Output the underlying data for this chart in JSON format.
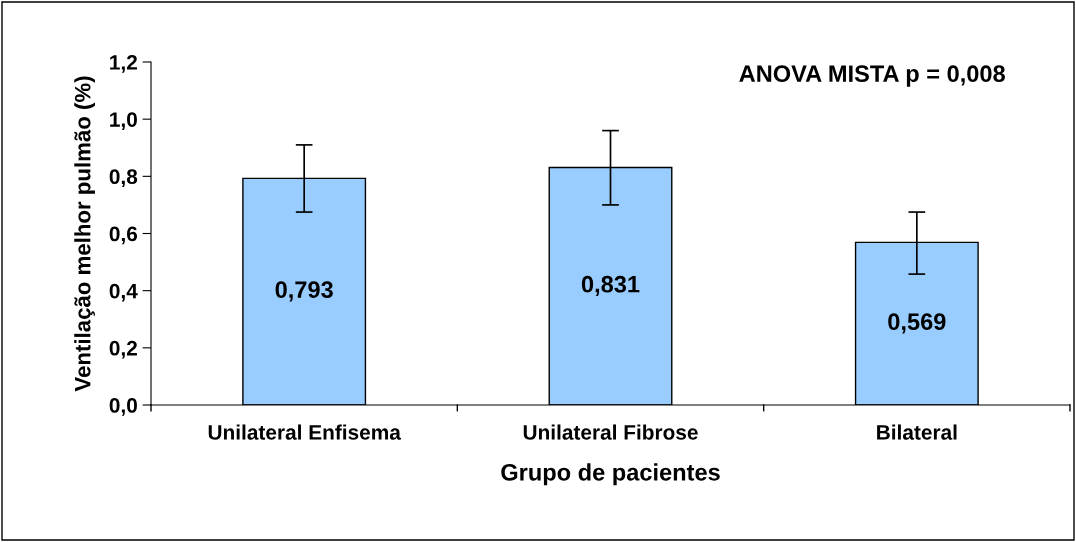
{
  "chart_data": {
    "type": "bar",
    "xlabel": "Grupo de pacientes",
    "ylabel": "Ventilação melhor pulmão (%)",
    "categories": [
      "Unilateral Enfisema",
      "Unilateral Fibrose",
      "Bilateral"
    ],
    "values": [
      0.793,
      0.831,
      0.569
    ],
    "value_labels": [
      "0,793",
      "0,831",
      "0,569"
    ],
    "errors": [
      [
        0.675,
        0.91
      ],
      [
        0.7,
        0.96
      ],
      [
        0.458,
        0.675
      ]
    ],
    "color": "#99ccff",
    "ylim": [
      0,
      1.2
    ],
    "yticks": [
      {
        "value": 0,
        "label": "0,0"
      },
      {
        "value": 0.2,
        "label": "0,2"
      },
      {
        "value": 0.4,
        "label": "0,4"
      },
      {
        "value": 0.6,
        "label": "0,6"
      },
      {
        "value": 0.8,
        "label": "0,8"
      },
      {
        "value": 1.0,
        "label": "1,0"
      },
      {
        "value": 1.2,
        "label": "1,2"
      }
    ],
    "annotations": [
      "ANOVA MISTA p = 0,008"
    ],
    "grid": false,
    "legend": false
  }
}
